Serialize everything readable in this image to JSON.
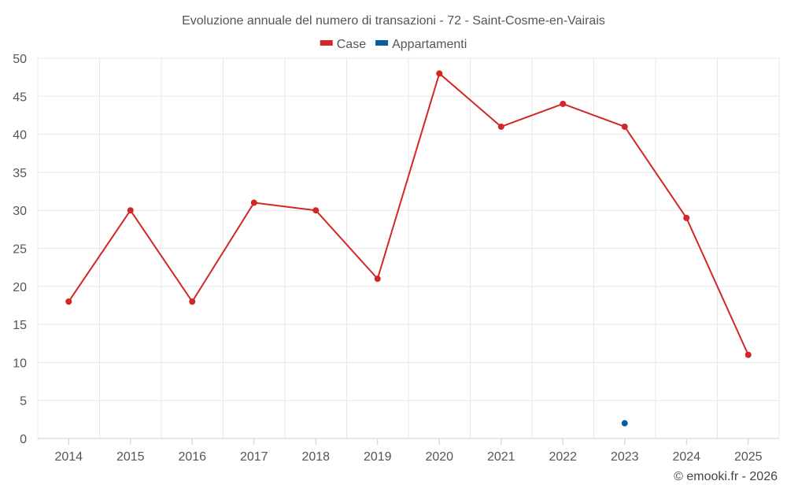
{
  "chart_data": {
    "type": "line",
    "title": "Evoluzione annuale del numero di transazioni - 72 - Saint-Cosme-en-Vairais",
    "categories": [
      "2014",
      "2015",
      "2016",
      "2017",
      "2018",
      "2019",
      "2020",
      "2021",
      "2022",
      "2023",
      "2024",
      "2025"
    ],
    "series": [
      {
        "name": "Case",
        "color": "#d32626",
        "values": [
          18,
          30,
          18,
          31,
          30,
          21,
          48,
          41,
          44,
          41,
          29,
          11
        ]
      },
      {
        "name": "Appartamenti",
        "color": "#0b5c9e",
        "values": [
          null,
          null,
          null,
          null,
          null,
          null,
          null,
          null,
          null,
          2,
          null,
          null
        ]
      }
    ],
    "ylim": [
      0,
      50
    ],
    "yticks": [
      0,
      5,
      10,
      15,
      20,
      25,
      30,
      35,
      40,
      45,
      50
    ],
    "xlabel": "",
    "ylabel": "",
    "grid": true,
    "legend_position": "top-center"
  },
  "credit": "© emooki.fr - 2026"
}
